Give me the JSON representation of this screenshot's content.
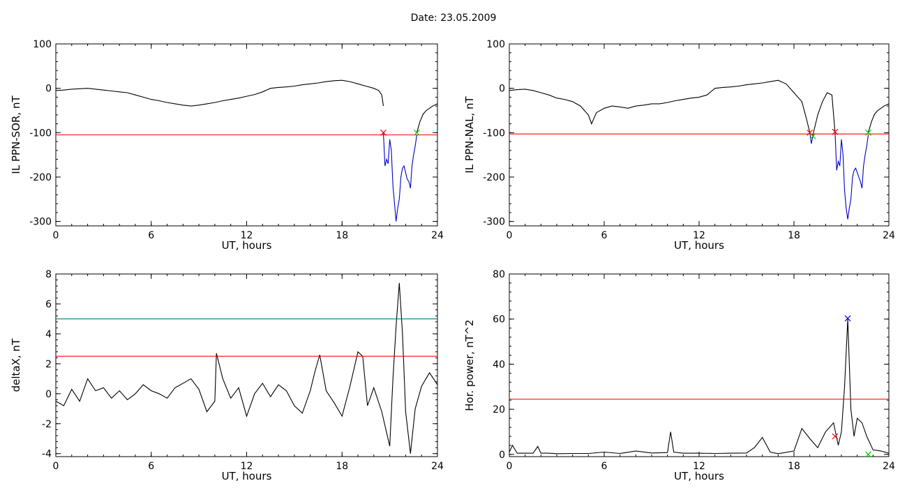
{
  "page": {
    "date_label": "Date:  23.05.2009"
  },
  "chart_data": [
    {
      "id": "p1",
      "type": "line",
      "ylabel": "IL PPN-SOR, nT",
      "xlabel": "UT, hours",
      "xlim": [
        0,
        24
      ],
      "ylim": [
        -310,
        100
      ],
      "xticks": [
        0,
        6,
        12,
        18,
        24
      ],
      "yticks": [
        -300,
        -200,
        -100,
        0,
        100
      ],
      "series": [
        {
          "color": "#000000",
          "x": [
            0,
            0.5,
            1,
            1.5,
            2,
            2.5,
            3,
            3.5,
            4,
            4.5,
            5,
            5.5,
            6,
            6.5,
            7,
            7.5,
            8,
            8.5,
            9,
            9.5,
            10,
            10.5,
            11,
            11.5,
            12,
            12.5,
            13,
            13.5,
            14,
            14.5,
            15,
            15.5,
            16,
            16.5,
            17,
            17.5,
            18,
            18.5,
            19,
            19.5,
            20,
            20.3,
            20.5,
            20.6
          ],
          "y": [
            -5,
            -4,
            -2,
            -1,
            0,
            -2,
            -4,
            -6,
            -8,
            -10,
            -15,
            -20,
            -25,
            -28,
            -32,
            -35,
            -38,
            -40,
            -38,
            -35,
            -32,
            -28,
            -25,
            -22,
            -18,
            -14,
            -8,
            0,
            2,
            3,
            5,
            8,
            10,
            12,
            15,
            17,
            18,
            15,
            10,
            5,
            0,
            -5,
            -15,
            -40
          ]
        },
        {
          "color": "#0000cc",
          "x": [
            20.6,
            20.7,
            20.8,
            20.9,
            21.0,
            21.1,
            21.2,
            21.3,
            21.4,
            21.5,
            21.6,
            21.7,
            21.8,
            21.9,
            22.0,
            22.1,
            22.2,
            22.3,
            22.4,
            22.5,
            22.6,
            22.7
          ],
          "y": [
            -100,
            -175,
            -160,
            -170,
            -115,
            -140,
            -220,
            -260,
            -300,
            -270,
            -250,
            -200,
            -180,
            -175,
            -190,
            -205,
            -210,
            -225,
            -175,
            -150,
            -130,
            -105
          ]
        },
        {
          "color": "#000000",
          "x": [
            22.7,
            22.9,
            23.1,
            23.3,
            23.5,
            23.7,
            24
          ],
          "y": [
            -100,
            -75,
            -58,
            -50,
            -45,
            -40,
            -35
          ]
        },
        {
          "color": "#ff0000",
          "x": [
            0,
            24
          ],
          "y": [
            -105,
            -105
          ]
        }
      ],
      "markers": [
        {
          "x": 20.6,
          "y": -100,
          "color": "#ff0000"
        },
        {
          "x": 22.7,
          "y": -100,
          "color": "#00cc00"
        }
      ]
    },
    {
      "id": "p2",
      "type": "line",
      "ylabel": "IL PPN-NAL, nT",
      "xlabel": "UT, hours",
      "xlim": [
        0,
        24
      ],
      "ylim": [
        -310,
        100
      ],
      "xticks": [
        0,
        6,
        12,
        18,
        24
      ],
      "yticks": [
        -300,
        -200,
        -100,
        0,
        100
      ],
      "series": [
        {
          "color": "#000000",
          "x": [
            0,
            0.5,
            1,
            1.5,
            2,
            2.5,
            3,
            3.5,
            4,
            4.5,
            5,
            5.2,
            5.5,
            6,
            6.5,
            7,
            7.5,
            8,
            8.5,
            9,
            9.5,
            10,
            10.5,
            11,
            11.5,
            12,
            12.5,
            13,
            13.5,
            14,
            14.5,
            15,
            15.5,
            16,
            16.5,
            17,
            17.5,
            18,
            18.5,
            18.8,
            19.0
          ],
          "y": [
            -5,
            -3,
            -2,
            -5,
            -10,
            -15,
            -22,
            -25,
            -30,
            -40,
            -60,
            -80,
            -55,
            -45,
            -40,
            -42,
            -45,
            -40,
            -38,
            -35,
            -35,
            -32,
            -28,
            -25,
            -22,
            -20,
            -15,
            0,
            2,
            3,
            5,
            8,
            10,
            12,
            15,
            18,
            10,
            -10,
            -30,
            -70,
            -100
          ]
        },
        {
          "color": "#0000cc",
          "x": [
            19.0,
            19.1,
            19.2
          ],
          "y": [
            -100,
            -125,
            -105
          ]
        },
        {
          "color": "#000000",
          "x": [
            19.2,
            19.5,
            19.8,
            20.1,
            20.4,
            20.6
          ],
          "y": [
            -105,
            -60,
            -30,
            -10,
            -15,
            -100
          ]
        },
        {
          "color": "#0000cc",
          "x": [
            20.6,
            20.7,
            20.8,
            20.9,
            21.0,
            21.1,
            21.2,
            21.3,
            21.4,
            21.5,
            21.6,
            21.7,
            21.8,
            21.9,
            22.0,
            22.1,
            22.2,
            22.3,
            22.4,
            22.5,
            22.6,
            22.7
          ],
          "y": [
            -100,
            -185,
            -165,
            -175,
            -115,
            -150,
            -230,
            -270,
            -295,
            -270,
            -250,
            -200,
            -185,
            -180,
            -190,
            -200,
            -210,
            -225,
            -175,
            -150,
            -130,
            -105
          ]
        },
        {
          "color": "#000000",
          "x": [
            22.7,
            22.9,
            23.1,
            23.3,
            23.5,
            23.7,
            24
          ],
          "y": [
            -100,
            -75,
            -58,
            -50,
            -45,
            -40,
            -35
          ]
        },
        {
          "color": "#ff0000",
          "x": [
            0,
            24
          ],
          "y": [
            -103,
            -103
          ]
        }
      ],
      "markers": [
        {
          "x": 19.0,
          "y": -100,
          "color": "#ff0000"
        },
        {
          "x": 19.2,
          "y": -108,
          "color": "#00cc00"
        },
        {
          "x": 20.6,
          "y": -98,
          "color": "#ff0000"
        },
        {
          "x": 22.7,
          "y": -100,
          "color": "#00cc00"
        }
      ]
    },
    {
      "id": "p3",
      "type": "line",
      "ylabel": "deltaX, nT",
      "xlabel": "UT, hours",
      "xlim": [
        0,
        24
      ],
      "ylim": [
        -4.2,
        8
      ],
      "xticks": [
        0,
        6,
        12,
        18,
        24
      ],
      "yticks": [
        -4,
        -2,
        0,
        2,
        4,
        6,
        8
      ],
      "series": [
        {
          "color": "#000000",
          "x": [
            0,
            0.5,
            1,
            1.5,
            2,
            2.5,
            3,
            3.5,
            4,
            4.5,
            5,
            5.5,
            6,
            6.5,
            7,
            7.5,
            8,
            8.5,
            9,
            9.5,
            10,
            10.1,
            10.5,
            11,
            11.5,
            12,
            12.5,
            13,
            13.5,
            14,
            14.5,
            15,
            15.5,
            16,
            16.3,
            16.6,
            17,
            17.5,
            18,
            18.5,
            19,
            19.3,
            19.6,
            20,
            20.5,
            21,
            21.2,
            21.4,
            21.6,
            21.8,
            22,
            22.3,
            22.6,
            23,
            23.5,
            24
          ],
          "y": [
            -0.5,
            -0.8,
            0.3,
            -0.5,
            1.0,
            0.2,
            0.4,
            -0.3,
            0.2,
            -0.4,
            0.0,
            0.6,
            0.2,
            0.0,
            -0.3,
            0.4,
            0.7,
            1.0,
            0.3,
            -1.2,
            -0.5,
            2.7,
            1.0,
            -0.3,
            0.4,
            -1.5,
            0.0,
            0.7,
            -0.2,
            0.6,
            0.2,
            -0.8,
            -1.3,
            0.2,
            1.5,
            2.6,
            0.2,
            -0.6,
            -1.5,
            0.5,
            2.8,
            2.5,
            -0.8,
            0.4,
            -1.2,
            -3.5,
            1.0,
            4.5,
            7.4,
            4.0,
            -1.2,
            -4.0,
            -1.0,
            0.5,
            1.4,
            0.6
          ]
        },
        {
          "color": "#ff0000",
          "x": [
            0,
            24
          ],
          "y": [
            2.5,
            2.5
          ]
        },
        {
          "color": "#008080",
          "x": [
            0,
            24
          ],
          "y": [
            5.0,
            5.0
          ]
        }
      ],
      "markers": []
    },
    {
      "id": "p4",
      "type": "line",
      "ylabel": "Hor. power, nT^2",
      "xlabel": "UT, hours",
      "xlim": [
        0,
        24
      ],
      "ylim": [
        -1,
        80
      ],
      "xticks": [
        0,
        6,
        12,
        18,
        24
      ],
      "yticks": [
        0,
        20,
        40,
        60,
        80
      ],
      "series": [
        {
          "color": "#000000",
          "x": [
            0,
            0.2,
            0.5,
            1,
            1.5,
            1.8,
            2,
            2.5,
            3,
            4,
            5,
            6,
            7,
            8,
            9,
            10,
            10.2,
            10.4,
            11,
            12,
            13,
            14,
            15,
            15.5,
            16,
            16.5,
            17,
            18,
            18.5,
            19,
            19.5,
            20,
            20.5,
            20.8,
            21,
            21.2,
            21.4,
            21.6,
            21.8,
            22,
            22.3,
            22.6,
            23,
            23.5,
            24
          ],
          "y": [
            1,
            4,
            0.5,
            0.5,
            0.5,
            3.5,
            0.5,
            0.5,
            0.3,
            0.4,
            0.4,
            1.0,
            0.4,
            1.5,
            0.6,
            0.8,
            10,
            1.0,
            0.5,
            0.5,
            0.4,
            0.5,
            0.6,
            3.0,
            7.5,
            1.0,
            0.3,
            1.5,
            11.5,
            7.0,
            3.0,
            10.0,
            14.0,
            4.0,
            10.0,
            30.0,
            60.0,
            20.0,
            8.0,
            16.0,
            14.0,
            8.0,
            2.0,
            1.5,
            0.5
          ]
        },
        {
          "color": "#ff0000",
          "x": [
            0,
            24
          ],
          "y": [
            24.5,
            24.5
          ]
        }
      ],
      "markers": [
        {
          "x": 20.6,
          "y": 8,
          "color": "#ff0000"
        },
        {
          "x": 21.4,
          "y": 60.3,
          "color": "#0000ff"
        },
        {
          "x": 22.7,
          "y": 0,
          "color": "#00cc00"
        }
      ]
    }
  ]
}
